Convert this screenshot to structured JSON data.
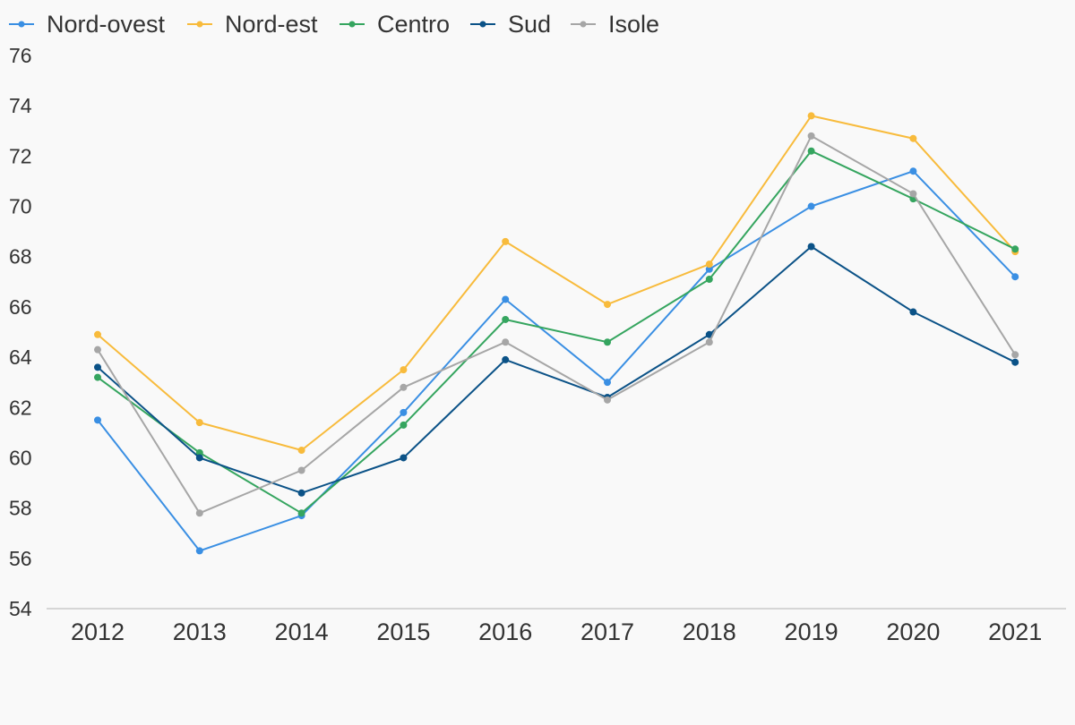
{
  "chart_data": {
    "type": "line",
    "categories": [
      "2012",
      "2013",
      "2014",
      "2015",
      "2016",
      "2017",
      "2018",
      "2019",
      "2020",
      "2021"
    ],
    "series": [
      {
        "name": "Nord-ovest",
        "color": "#3a8fe3",
        "values": [
          61.5,
          56.3,
          57.7,
          61.8,
          66.3,
          63.0,
          67.5,
          70.0,
          71.4,
          67.2
        ]
      },
      {
        "name": "Nord-est",
        "color": "#f8bb3c",
        "values": [
          64.9,
          61.4,
          60.3,
          63.5,
          68.6,
          66.1,
          67.7,
          73.6,
          72.7,
          68.2
        ]
      },
      {
        "name": "Centro",
        "color": "#35a55f",
        "values": [
          63.2,
          60.2,
          57.8,
          61.3,
          65.5,
          64.6,
          67.1,
          72.2,
          70.3,
          68.3
        ]
      },
      {
        "name": "Sud",
        "color": "#0b5287",
        "values": [
          63.6,
          60.0,
          58.6,
          60.0,
          63.9,
          62.4,
          64.9,
          68.4,
          65.8,
          63.8
        ]
      },
      {
        "name": "Isole",
        "color": "#a6a6a6",
        "values": [
          64.3,
          57.8,
          59.5,
          62.8,
          64.6,
          62.3,
          64.6,
          72.8,
          70.5,
          64.1
        ]
      }
    ],
    "y_ticks": [
      "54",
      "56",
      "58",
      "60",
      "62",
      "64",
      "66",
      "68",
      "70",
      "72",
      "74",
      "76"
    ],
    "ylim": [
      54,
      76
    ],
    "grid": false,
    "legend_position": "top-left",
    "title": "",
    "xlabel": "",
    "ylabel": ""
  }
}
